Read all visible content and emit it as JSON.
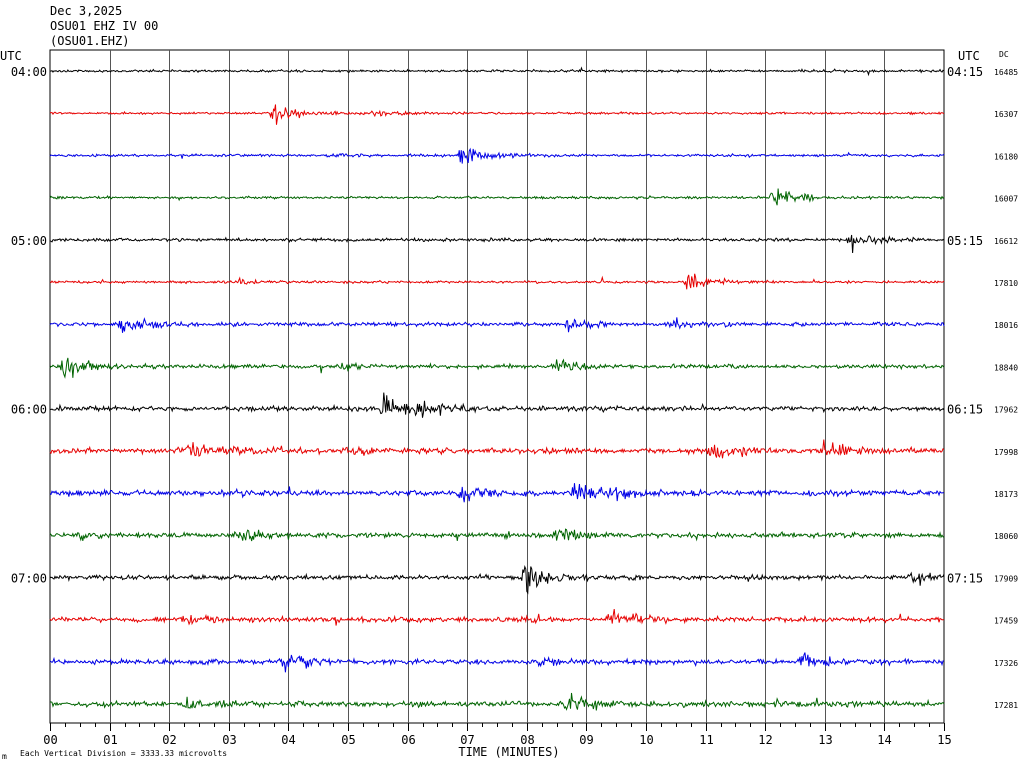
{
  "header": {
    "date": "Dec 3,2025",
    "station_line": "OSU01 EHZ IV 00",
    "channel_line": "(OSU01.EHZ)"
  },
  "left_label": "UTC",
  "right_label": "UTC",
  "dc_label": "DC",
  "footer": {
    "note": "Each Vertical Division = 3333.33 microvolts",
    "mark": "m"
  },
  "colors": {
    "cycle": [
      "#000000",
      "#e60000",
      "#0000e6",
      "#006400"
    ],
    "grid": "#000000"
  },
  "chart_data": {
    "type": "line",
    "title": "",
    "xlabel": "TIME (MINUTES)",
    "ylabel": "",
    "xlim": [
      0,
      15
    ],
    "x_ticks": [
      "00",
      "01",
      "02",
      "03",
      "04",
      "05",
      "06",
      "07",
      "08",
      "09",
      "10",
      "11",
      "12",
      "13",
      "14",
      "15"
    ],
    "grid": true,
    "traces": [
      {
        "left": "04:00",
        "right": "04:15",
        "dc": "16485",
        "color": "#000000",
        "noise": 0.8,
        "events": [
          {
            "t": 12.6,
            "amp": 0.4
          }
        ]
      },
      {
        "left": "",
        "right": "",
        "dc": "16307",
        "color": "#e60000",
        "noise": 0.7,
        "events": [
          {
            "t": 3.75,
            "amp": 6.5
          },
          {
            "t": 5.4,
            "amp": 1.6
          }
        ]
      },
      {
        "left": "",
        "right": "",
        "dc": "16180",
        "color": "#0000e6",
        "noise": 0.8,
        "events": [
          {
            "t": 6.9,
            "amp": 7.5
          },
          {
            "t": 4.7,
            "amp": 1.2
          }
        ]
      },
      {
        "left": "",
        "right": "",
        "dc": "16007",
        "color": "#006400",
        "noise": 0.8,
        "events": [
          {
            "t": 12.1,
            "amp": 7
          }
        ]
      },
      {
        "left": "05:00",
        "right": "05:15",
        "dc": "16612",
        "color": "#000000",
        "noise": 1.0,
        "events": [
          {
            "t": 13.45,
            "amp": 6
          }
        ]
      },
      {
        "left": "",
        "right": "",
        "dc": "17810",
        "color": "#e60000",
        "noise": 0.8,
        "events": [
          {
            "t": 10.7,
            "amp": 7
          },
          {
            "t": 3.1,
            "amp": 1.5
          }
        ]
      },
      {
        "left": "",
        "right": "",
        "dc": "18016",
        "color": "#0000e6",
        "noise": 1.3,
        "events": [
          {
            "t": 1.2,
            "amp": 6.5
          },
          {
            "t": 8.7,
            "amp": 3.5
          },
          {
            "t": 10.4,
            "amp": 4
          }
        ]
      },
      {
        "left": "",
        "right": "",
        "dc": "18840",
        "color": "#006400",
        "noise": 1.3,
        "events": [
          {
            "t": 0.25,
            "amp": 7.5
          },
          {
            "t": 8.5,
            "amp": 3.5
          },
          {
            "t": 4.9,
            "amp": 2
          }
        ]
      },
      {
        "left": "06:00",
        "right": "06:15",
        "dc": "17962",
        "color": "#000000",
        "noise": 1.6,
        "events": [
          {
            "t": 5.6,
            "amp": 9
          },
          {
            "t": 6.2,
            "amp": 4
          }
        ]
      },
      {
        "left": "",
        "right": "",
        "dc": "17998",
        "color": "#e60000",
        "noise": 1.8,
        "events": [
          {
            "t": 2.3,
            "amp": 6
          },
          {
            "t": 11.1,
            "amp": 6
          },
          {
            "t": 13.0,
            "amp": 7
          },
          {
            "t": 5.0,
            "amp": 3
          }
        ]
      },
      {
        "left": "",
        "right": "",
        "dc": "18173",
        "color": "#0000e6",
        "noise": 1.8,
        "events": [
          {
            "t": 6.9,
            "amp": 5
          },
          {
            "t": 8.8,
            "amp": 7
          },
          {
            "t": 9.4,
            "amp": 3.5
          }
        ]
      },
      {
        "left": "",
        "right": "",
        "dc": "18060",
        "color": "#006400",
        "noise": 1.6,
        "events": [
          {
            "t": 3.1,
            "amp": 6
          },
          {
            "t": 8.5,
            "amp": 6
          },
          {
            "t": 0.5,
            "amp": 3
          }
        ]
      },
      {
        "left": "07:00",
        "right": "07:15",
        "dc": "17909",
        "color": "#000000",
        "noise": 1.5,
        "events": [
          {
            "t": 7.95,
            "amp": 10
          },
          {
            "t": 14.45,
            "amp": 3.5
          }
        ]
      },
      {
        "left": "",
        "right": "",
        "dc": "17459",
        "color": "#e60000",
        "noise": 1.6,
        "events": [
          {
            "t": 9.4,
            "amp": 7
          },
          {
            "t": 2.2,
            "amp": 4
          }
        ]
      },
      {
        "left": "",
        "right": "",
        "dc": "17326",
        "color": "#0000e6",
        "noise": 1.6,
        "events": [
          {
            "t": 3.9,
            "amp": 6.5
          },
          {
            "t": 12.6,
            "amp": 6
          },
          {
            "t": 8.2,
            "amp": 2
          }
        ]
      },
      {
        "left": "",
        "right": "",
        "dc": "17281",
        "color": "#006400",
        "noise": 1.8,
        "events": [
          {
            "t": 8.7,
            "amp": 7.5
          },
          {
            "t": 2.3,
            "amp": 4
          }
        ]
      }
    ]
  }
}
